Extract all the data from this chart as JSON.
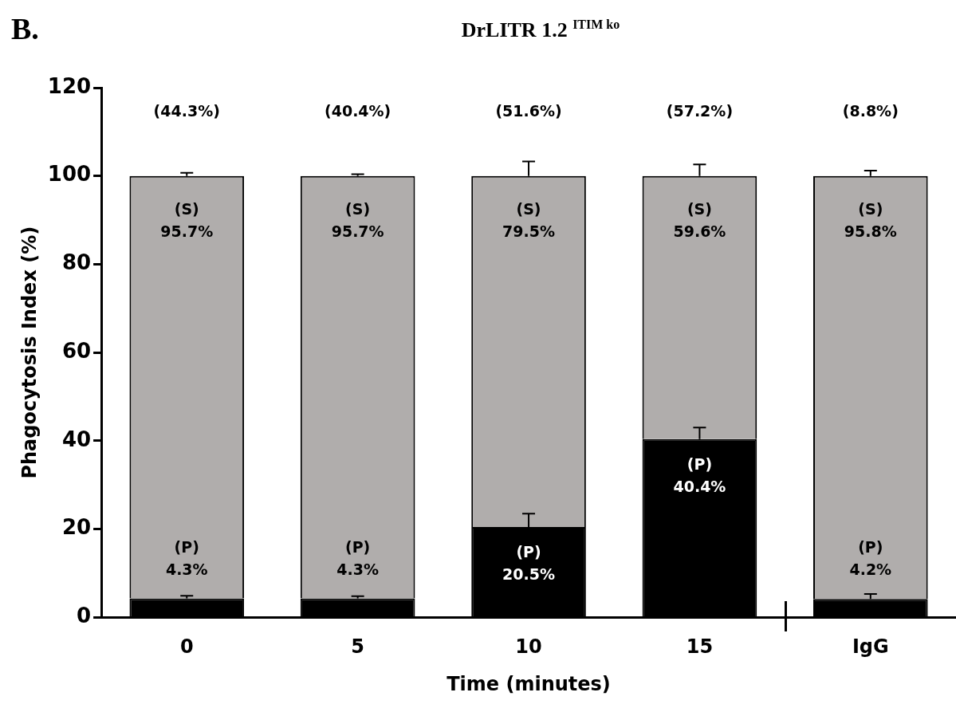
{
  "chart_data": {
    "type": "bar",
    "stacked": true,
    "title": "DrLITR 1.2 $^{ITIM ko}$",
    "xlabel": "Time (minutes)",
    "ylabel": "Phagocytosis Index (%)",
    "categories": [
      "0",
      "5",
      "10",
      "15",
      "IgG"
    ],
    "series": [
      {
        "color": "#000000",
        "values": [
          4.3,
          4.3,
          20.5,
          40.4,
          4.2
        ],
        "errors": [
          [
            4.3,
            4.9
          ],
          [
            4.3,
            4.8
          ],
          [
            20.5,
            23.5
          ],
          [
            40.4,
            43.0
          ],
          [
            4.2,
            5.3
          ]
        ],
        "value_labels": [
          "(P)\n4.3%",
          "(P)\n4.3%",
          "(P)\n20.5%",
          "(P)\n40.4%",
          "(P)\n4.2%"
        ]
      },
      {
        "color": "#b0adac",
        "values": [
          95.7,
          95.7,
          79.5,
          59.6,
          95.8
        ],
        "errors": [
          [
            100,
            100.7
          ],
          [
            100,
            100.4
          ],
          [
            100,
            103.3
          ],
          [
            100,
            102.6
          ],
          [
            100,
            101.2
          ]
        ],
        "value_labels": [
          "(S)\n95.7%",
          "(S)\n95.7%",
          "(S)\n79.5%",
          "(S)\n59.6%",
          "(S)\n95.8%"
        ]
      }
    ],
    "annotations": [
      "B.",
      "(44.3%)",
      "(40.4%)",
      "(51.6%)",
      "(57.2%)",
      "(8.8%)"
    ],
    "ylim": [
      0,
      120
    ],
    "yticks": [
      0,
      20,
      40,
      60,
      80,
      100,
      120
    ],
    "grid": false,
    "legend": false
  }
}
